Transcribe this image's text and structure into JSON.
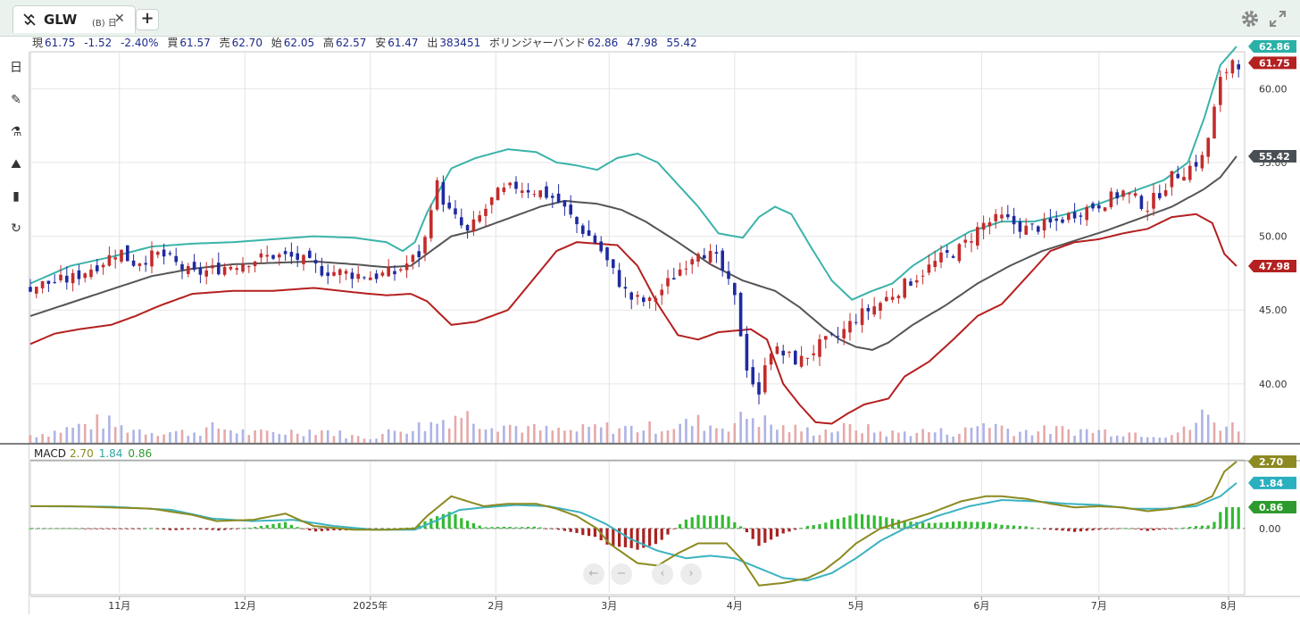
{
  "tab": {
    "symbol": "GLW",
    "subtitle": "(B) 日",
    "close": "✕",
    "add": "+"
  },
  "info": {
    "cur_label": "現",
    "cur": "61.75",
    "change": "-1.52",
    "change_pct": "-2.40%",
    "buy_label": "買",
    "buy": "61.57",
    "sell_label": "売",
    "sell": "62.70",
    "open_label": "始",
    "open": "62.05",
    "high_label": "高",
    "high": "62.57",
    "low_label": "安",
    "low": "61.47",
    "vol_label": "出",
    "vol": "383451",
    "bb_label": "ボリンジャーバンド",
    "bb_upper": "62.86",
    "bb_lower": "47.98",
    "bb_mid": "55.42"
  },
  "macd": {
    "label": "MACD",
    "macd": "2.70",
    "signal": "1.84",
    "hist": "0.86"
  },
  "colors": {
    "up": "#c42b2b",
    "down": "#1f2aa0",
    "bb_upper": "#3bb3aa",
    "bb_mid": "#555555",
    "bb_lower": "#b52020",
    "macd": "#8c8a20",
    "signal": "#3bb3c0",
    "hist_pos": "#33bb33",
    "hist_neg": "#aa2222"
  },
  "chart_data": [
    {
      "type": "candlestick",
      "title": "",
      "ylim": [
        36.0,
        62.5
      ],
      "yticks": [
        "60.00",
        "55.00",
        "50.00",
        "45.00",
        "40.00"
      ],
      "ytick_values": [
        60,
        55,
        50,
        45,
        40
      ],
      "xticks": [
        "11月",
        "12月",
        "2025年",
        "2月",
        "3月",
        "4月",
        "5月",
        "6月",
        "7月",
        "8月"
      ],
      "xtick_days": [
        22,
        53,
        84,
        115,
        143,
        174,
        204,
        235,
        264,
        296
      ],
      "x_range_days": [
        0,
        300
      ],
      "price_tags": [
        {
          "label": "62.86",
          "value": 62.86,
          "color": "#2bb0a8"
        },
        {
          "label": "61.75",
          "value": 61.75,
          "color": "#b52020"
        },
        {
          "label": "55.42",
          "value": 55.42,
          "color": "#4a4f55"
        },
        {
          "label": "47.98",
          "value": 47.98,
          "color": "#b52020"
        }
      ],
      "close_anchors": [
        [
          0,
          46.6
        ],
        [
          10,
          47.1
        ],
        [
          18,
          48.3
        ],
        [
          22,
          49.1
        ],
        [
          25,
          48.2
        ],
        [
          32,
          48.8
        ],
        [
          40,
          47.4
        ],
        [
          46,
          47.8
        ],
        [
          53,
          48.3
        ],
        [
          60,
          48.7
        ],
        [
          66,
          48.5
        ],
        [
          72,
          47.7
        ],
        [
          78,
          47.5
        ],
        [
          84,
          47.3
        ],
        [
          90,
          47.5
        ],
        [
          97,
          49.0
        ],
        [
          100,
          53.8
        ],
        [
          103,
          51.8
        ],
        [
          108,
          50.2
        ],
        [
          115,
          52.8
        ],
        [
          120,
          53.4
        ],
        [
          126,
          53.0
        ],
        [
          130,
          52.5
        ],
        [
          135,
          50.8
        ],
        [
          140,
          49.5
        ],
        [
          143,
          48.0
        ],
        [
          148,
          45.8
        ],
        [
          153,
          45.5
        ],
        [
          158,
          47.0
        ],
        [
          165,
          49.2
        ],
        [
          170,
          48.3
        ],
        [
          174,
          45.7
        ],
        [
          177,
          41.2
        ],
        [
          180,
          39.0
        ],
        [
          182,
          42.5
        ],
        [
          186,
          42.0
        ],
        [
          190,
          41.5
        ],
        [
          195,
          42.6
        ],
        [
          200,
          43.3
        ],
        [
          204,
          44.5
        ],
        [
          210,
          45.5
        ],
        [
          213,
          46.1
        ],
        [
          218,
          47.1
        ],
        [
          225,
          48.5
        ],
        [
          230,
          49.2
        ],
        [
          235,
          50.8
        ],
        [
          240,
          51.2
        ],
        [
          246,
          50.5
        ],
        [
          252,
          50.8
        ],
        [
          258,
          51.6
        ],
        [
          264,
          52.2
        ],
        [
          270,
          53.0
        ],
        [
          276,
          52.0
        ],
        [
          282,
          54.0
        ],
        [
          286,
          54.6
        ],
        [
          290,
          55.4
        ],
        [
          294,
          60.5
        ],
        [
          297,
          62.0
        ],
        [
          298,
          61.75
        ]
      ],
      "bb_upper_anchors": [
        [
          0,
          46.8
        ],
        [
          10,
          48.0
        ],
        [
          20,
          48.6
        ],
        [
          30,
          49.3
        ],
        [
          40,
          49.5
        ],
        [
          50,
          49.6
        ],
        [
          60,
          49.8
        ],
        [
          70,
          50.0
        ],
        [
          80,
          49.9
        ],
        [
          88,
          49.6
        ],
        [
          92,
          49.0
        ],
        [
          95,
          49.6
        ],
        [
          98,
          51.6
        ],
        [
          104,
          54.6
        ],
        [
          110,
          55.3
        ],
        [
          118,
          55.9
        ],
        [
          125,
          55.7
        ],
        [
          130,
          55.0
        ],
        [
          135,
          54.8
        ],
        [
          140,
          54.5
        ],
        [
          145,
          55.3
        ],
        [
          150,
          55.6
        ],
        [
          155,
          55.0
        ],
        [
          165,
          52.0
        ],
        [
          170,
          50.2
        ],
        [
          176,
          49.9
        ],
        [
          180,
          51.3
        ],
        [
          184,
          52.0
        ],
        [
          188,
          51.5
        ],
        [
          193,
          49.2
        ],
        [
          198,
          47.0
        ],
        [
          203,
          45.7
        ],
        [
          208,
          46.3
        ],
        [
          213,
          46.8
        ],
        [
          218,
          48.0
        ],
        [
          225,
          49.2
        ],
        [
          232,
          50.3
        ],
        [
          240,
          51.0
        ],
        [
          248,
          51.0
        ],
        [
          256,
          51.5
        ],
        [
          264,
          52.2
        ],
        [
          272,
          53.0
        ],
        [
          280,
          53.8
        ],
        [
          286,
          55.0
        ],
        [
          290,
          58.0
        ],
        [
          294,
          61.6
        ],
        [
          298,
          62.86
        ]
      ],
      "bb_mid_anchors": [
        [
          0,
          44.6
        ],
        [
          10,
          45.5
        ],
        [
          20,
          46.4
        ],
        [
          30,
          47.3
        ],
        [
          40,
          47.8
        ],
        [
          50,
          48.1
        ],
        [
          60,
          48.2
        ],
        [
          70,
          48.3
        ],
        [
          80,
          48.1
        ],
        [
          88,
          47.9
        ],
        [
          94,
          48.0
        ],
        [
          98,
          48.8
        ],
        [
          104,
          50.0
        ],
        [
          110,
          50.4
        ],
        [
          118,
          51.2
        ],
        [
          126,
          52.0
        ],
        [
          132,
          52.4
        ],
        [
          140,
          52.2
        ],
        [
          146,
          51.8
        ],
        [
          152,
          51.0
        ],
        [
          160,
          49.6
        ],
        [
          168,
          48.1
        ],
        [
          176,
          47.0
        ],
        [
          184,
          46.3
        ],
        [
          190,
          45.2
        ],
        [
          196,
          43.8
        ],
        [
          200,
          43.0
        ],
        [
          204,
          42.5
        ],
        [
          208,
          42.3
        ],
        [
          212,
          42.8
        ],
        [
          218,
          44.0
        ],
        [
          226,
          45.3
        ],
        [
          234,
          46.8
        ],
        [
          242,
          48.0
        ],
        [
          250,
          49.0
        ],
        [
          258,
          49.7
        ],
        [
          266,
          50.4
        ],
        [
          274,
          51.2
        ],
        [
          282,
          52.0
        ],
        [
          290,
          53.2
        ],
        [
          294,
          54.0
        ],
        [
          298,
          55.42
        ]
      ],
      "bb_lower_anchors": [
        [
          0,
          42.7
        ],
        [
          6,
          43.4
        ],
        [
          12,
          43.7
        ],
        [
          20,
          44.0
        ],
        [
          26,
          44.6
        ],
        [
          32,
          45.3
        ],
        [
          40,
          46.1
        ],
        [
          50,
          46.3
        ],
        [
          60,
          46.3
        ],
        [
          70,
          46.5
        ],
        [
          80,
          46.2
        ],
        [
          88,
          46.0
        ],
        [
          94,
          46.1
        ],
        [
          98,
          45.6
        ],
        [
          104,
          44.0
        ],
        [
          110,
          44.2
        ],
        [
          118,
          45.0
        ],
        [
          124,
          47.0
        ],
        [
          130,
          49.0
        ],
        [
          135,
          49.6
        ],
        [
          145,
          49.4
        ],
        [
          150,
          48.0
        ],
        [
          155,
          45.4
        ],
        [
          160,
          43.3
        ],
        [
          165,
          43.0
        ],
        [
          170,
          43.5
        ],
        [
          178,
          43.7
        ],
        [
          182,
          43.0
        ],
        [
          186,
          40.0
        ],
        [
          190,
          38.6
        ],
        [
          194,
          37.4
        ],
        [
          198,
          37.3
        ],
        [
          202,
          38.0
        ],
        [
          206,
          38.6
        ],
        [
          212,
          39.0
        ],
        [
          216,
          40.5
        ],
        [
          222,
          41.5
        ],
        [
          228,
          43.0
        ],
        [
          234,
          44.6
        ],
        [
          240,
          45.4
        ],
        [
          246,
          47.2
        ],
        [
          252,
          49.0
        ],
        [
          258,
          49.6
        ],
        [
          264,
          49.8
        ],
        [
          270,
          50.2
        ],
        [
          276,
          50.5
        ],
        [
          282,
          51.3
        ],
        [
          288,
          51.5
        ],
        [
          292,
          50.9
        ],
        [
          295,
          48.8
        ],
        [
          298,
          47.98
        ]
      ],
      "volume_anchors": [
        [
          0,
          0.15
        ],
        [
          5,
          0.2
        ],
        [
          18,
          0.42
        ],
        [
          22,
          0.3
        ],
        [
          30,
          0.22
        ],
        [
          40,
          0.2
        ],
        [
          46,
          0.3
        ],
        [
          55,
          0.18
        ],
        [
          65,
          0.22
        ],
        [
          72,
          0.25
        ],
        [
          80,
          0.12
        ],
        [
          84,
          0.1
        ],
        [
          92,
          0.28
        ],
        [
          98,
          0.33
        ],
        [
          102,
          0.45
        ],
        [
          106,
          0.58
        ],
        [
          110,
          0.45
        ],
        [
          118,
          0.34
        ],
        [
          126,
          0.25
        ],
        [
          134,
          0.22
        ],
        [
          140,
          0.3
        ],
        [
          150,
          0.28
        ],
        [
          160,
          0.33
        ],
        [
          165,
          0.4
        ],
        [
          170,
          0.3
        ],
        [
          175,
          0.42
        ],
        [
          178,
          0.55
        ],
        [
          184,
          0.3
        ],
        [
          194,
          0.22
        ],
        [
          204,
          0.3
        ],
        [
          212,
          0.18
        ],
        [
          220,
          0.22
        ],
        [
          230,
          0.2
        ],
        [
          236,
          0.4
        ],
        [
          244,
          0.22
        ],
        [
          254,
          0.25
        ],
        [
          264,
          0.23
        ],
        [
          272,
          0.2
        ],
        [
          280,
          0.15
        ],
        [
          286,
          0.25
        ],
        [
          290,
          0.55
        ],
        [
          293,
          0.38
        ],
        [
          298,
          0.3
        ]
      ]
    },
    {
      "type": "line",
      "title": "",
      "ylim": [
        -2.6,
        2.7
      ],
      "yticks": [
        "0.00"
      ],
      "ytick_values": [
        0
      ],
      "price_tags": [
        {
          "label": "2.70",
          "value": 2.7,
          "color": "#8c8a20"
        },
        {
          "label": "1.84",
          "value": 1.84,
          "color": "#2bb0bf"
        },
        {
          "label": "0.86",
          "value": 0.86,
          "color": "#2e9a2e"
        }
      ],
      "macd_anchors": [
        [
          0,
          0.9
        ],
        [
          10,
          0.9
        ],
        [
          20,
          0.85
        ],
        [
          30,
          0.8
        ],
        [
          40,
          0.55
        ],
        [
          46,
          0.3
        ],
        [
          55,
          0.35
        ],
        [
          63,
          0.6
        ],
        [
          70,
          0.1
        ],
        [
          80,
          -0.05
        ],
        [
          88,
          -0.05
        ],
        [
          95,
          0.0
        ],
        [
          98,
          0.5
        ],
        [
          104,
          1.3
        ],
        [
          108,
          1.1
        ],
        [
          112,
          0.9
        ],
        [
          118,
          1.0
        ],
        [
          125,
          1.0
        ],
        [
          130,
          0.8
        ],
        [
          135,
          0.5
        ],
        [
          140,
          0.0
        ],
        [
          143,
          -0.6
        ],
        [
          150,
          -1.4
        ],
        [
          155,
          -1.5
        ],
        [
          160,
          -1.0
        ],
        [
          165,
          -0.6
        ],
        [
          172,
          -0.6
        ],
        [
          176,
          -1.3
        ],
        [
          180,
          -2.3
        ],
        [
          186,
          -2.2
        ],
        [
          192,
          -2.0
        ],
        [
          196,
          -1.7
        ],
        [
          200,
          -1.2
        ],
        [
          204,
          -0.6
        ],
        [
          210,
          0.0
        ],
        [
          214,
          0.2
        ],
        [
          222,
          0.6
        ],
        [
          230,
          1.1
        ],
        [
          236,
          1.3
        ],
        [
          240,
          1.3
        ],
        [
          246,
          1.2
        ],
        [
          252,
          1.0
        ],
        [
          258,
          0.85
        ],
        [
          264,
          0.9
        ],
        [
          270,
          0.85
        ],
        [
          276,
          0.7
        ],
        [
          282,
          0.8
        ],
        [
          288,
          1.0
        ],
        [
          292,
          1.3
        ],
        [
          295,
          2.3
        ],
        [
          298,
          2.7
        ]
      ],
      "signal_anchors": [
        [
          0,
          0.9
        ],
        [
          20,
          0.88
        ],
        [
          35,
          0.75
        ],
        [
          45,
          0.4
        ],
        [
          55,
          0.3
        ],
        [
          65,
          0.35
        ],
        [
          75,
          0.1
        ],
        [
          85,
          -0.05
        ],
        [
          95,
          -0.05
        ],
        [
          100,
          0.3
        ],
        [
          106,
          0.75
        ],
        [
          112,
          0.85
        ],
        [
          120,
          0.95
        ],
        [
          128,
          0.9
        ],
        [
          136,
          0.65
        ],
        [
          142,
          0.2
        ],
        [
          148,
          -0.4
        ],
        [
          155,
          -0.9
        ],
        [
          162,
          -1.2
        ],
        [
          168,
          -1.1
        ],
        [
          174,
          -1.2
        ],
        [
          180,
          -1.6
        ],
        [
          186,
          -2.0
        ],
        [
          192,
          -2.1
        ],
        [
          198,
          -1.8
        ],
        [
          204,
          -1.2
        ],
        [
          210,
          -0.5
        ],
        [
          216,
          0.0
        ],
        [
          224,
          0.5
        ],
        [
          232,
          0.9
        ],
        [
          240,
          1.15
        ],
        [
          248,
          1.1
        ],
        [
          256,
          1.0
        ],
        [
          264,
          0.95
        ],
        [
          272,
          0.8
        ],
        [
          280,
          0.8
        ],
        [
          288,
          0.9
        ],
        [
          294,
          1.3
        ],
        [
          298,
          1.84
        ]
      ]
    }
  ]
}
